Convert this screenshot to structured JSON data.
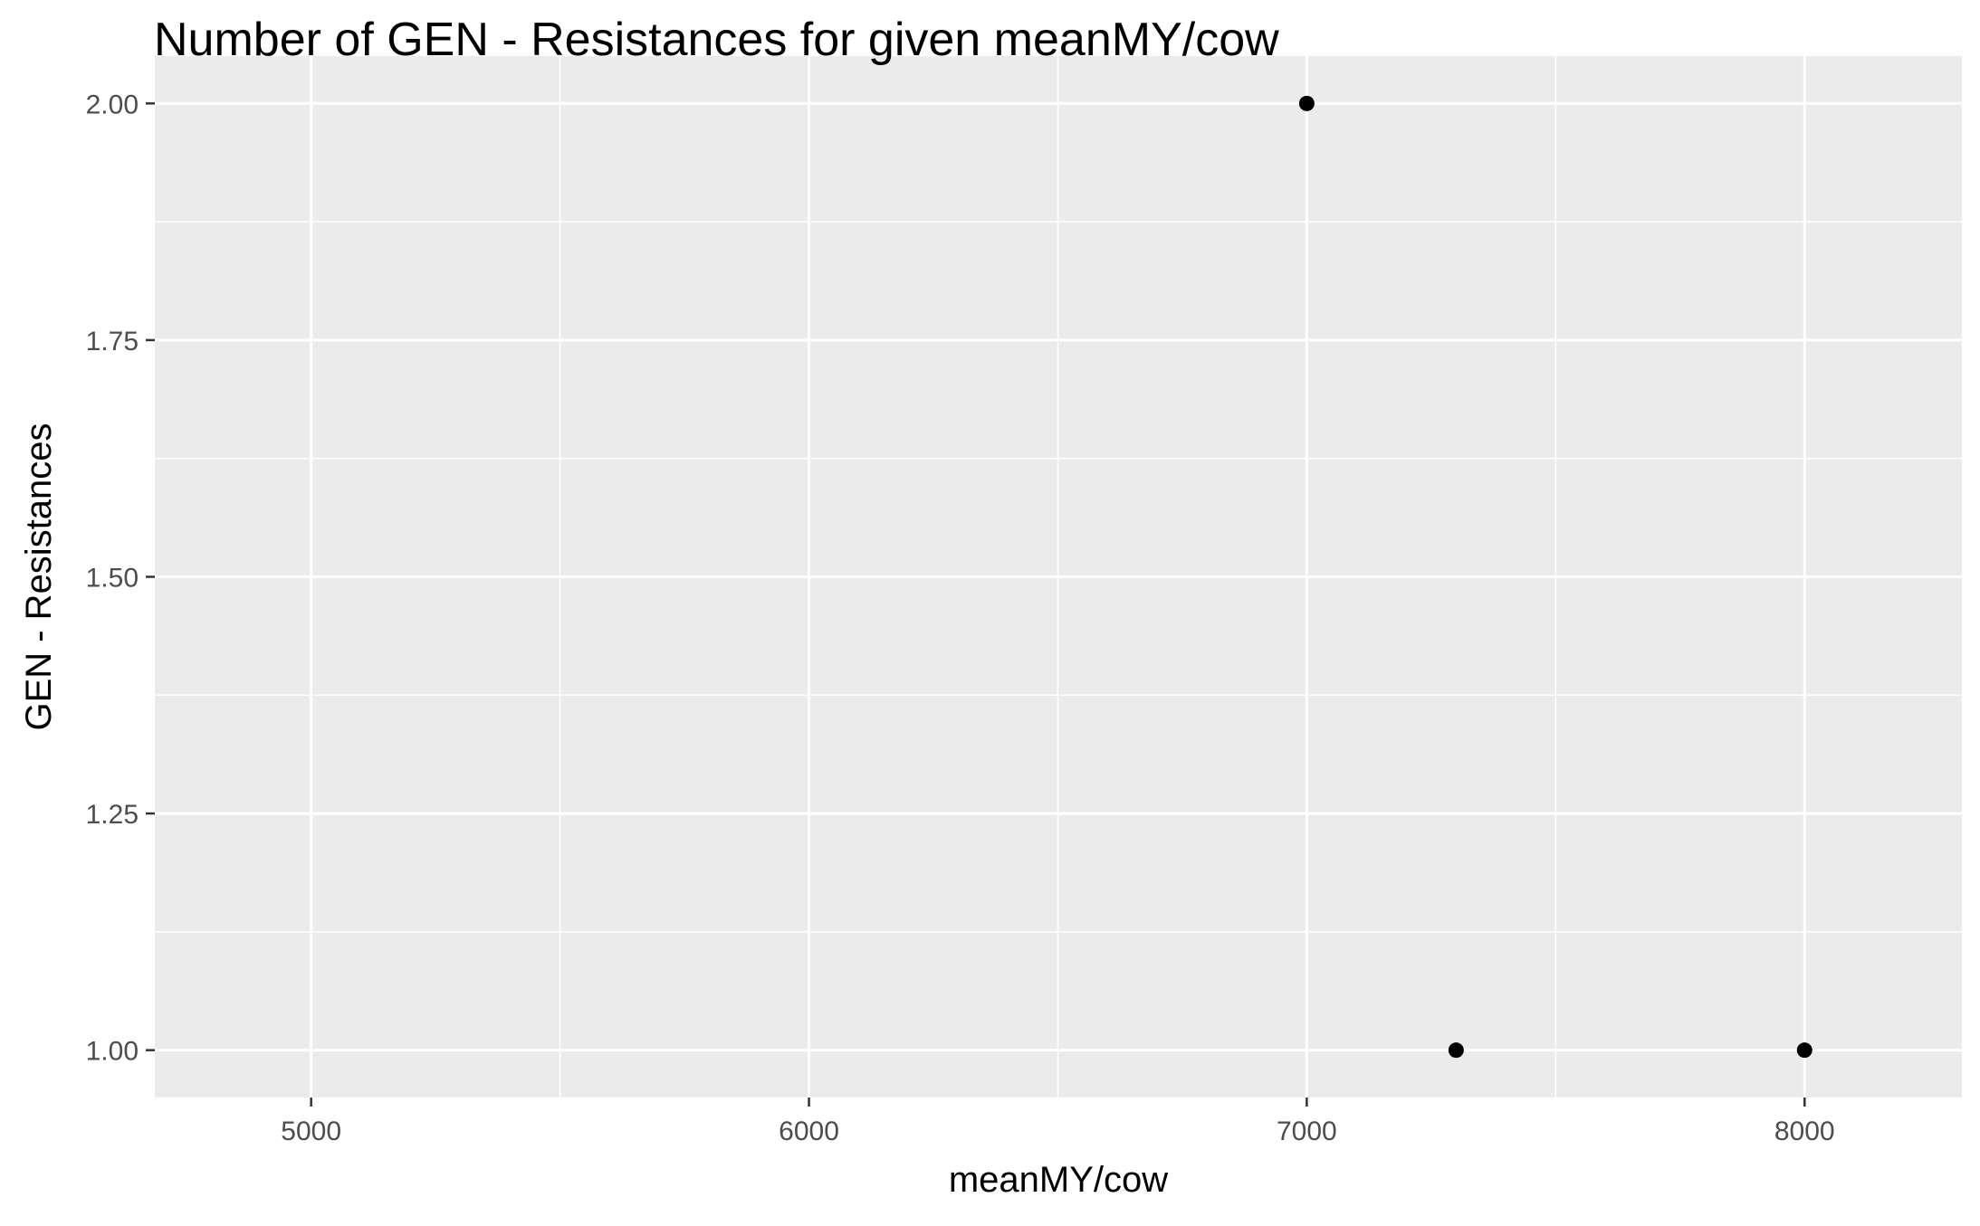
{
  "chart_data": {
    "type": "scatter",
    "title": "Number of GEN - Resistances for given meanMY/cow",
    "xlabel": "meanMY/cow",
    "ylabel": "GEN - Resistances",
    "xlim": [
      4686,
      8316
    ],
    "ylim": [
      0.95,
      2.05
    ],
    "xticks": [
      5000,
      6000,
      7000,
      8000
    ],
    "xtick_labels": [
      "5000",
      "6000",
      "7000",
      "8000"
    ],
    "yticks": [
      1.0,
      1.25,
      1.5,
      1.75,
      2.0
    ],
    "ytick_labels": [
      "1.00",
      "1.25",
      "1.50",
      "1.75",
      "2.00"
    ],
    "grid": true,
    "panel_color": "#EBEBEB",
    "grid_color": "#FFFFFF",
    "point_color": "#000000",
    "points": [
      {
        "x": 7000,
        "y": 2
      },
      {
        "x": 7300,
        "y": 1
      },
      {
        "x": 8000,
        "y": 1
      }
    ]
  }
}
